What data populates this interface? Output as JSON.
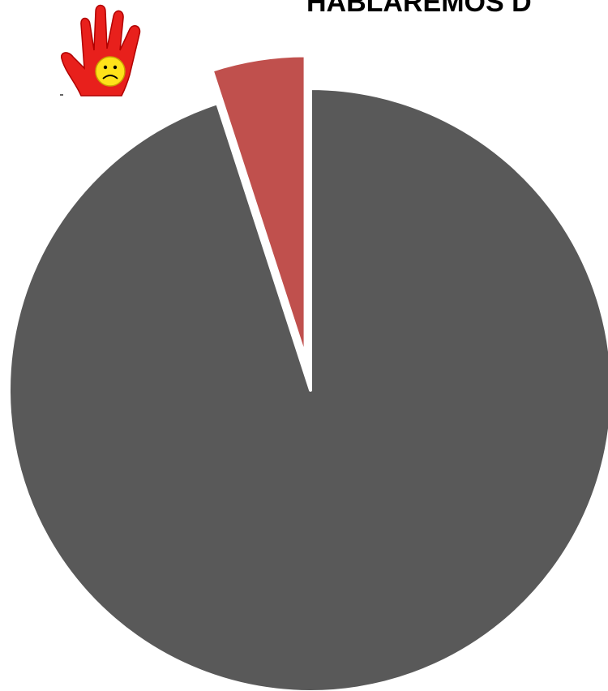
{
  "chart_data": {
    "type": "pie",
    "title": "HABLAREMOS D",
    "values": [
      95,
      5
    ],
    "colors": [
      "#595959",
      "#c0504d"
    ],
    "exploded": [
      false,
      true
    ]
  }
}
